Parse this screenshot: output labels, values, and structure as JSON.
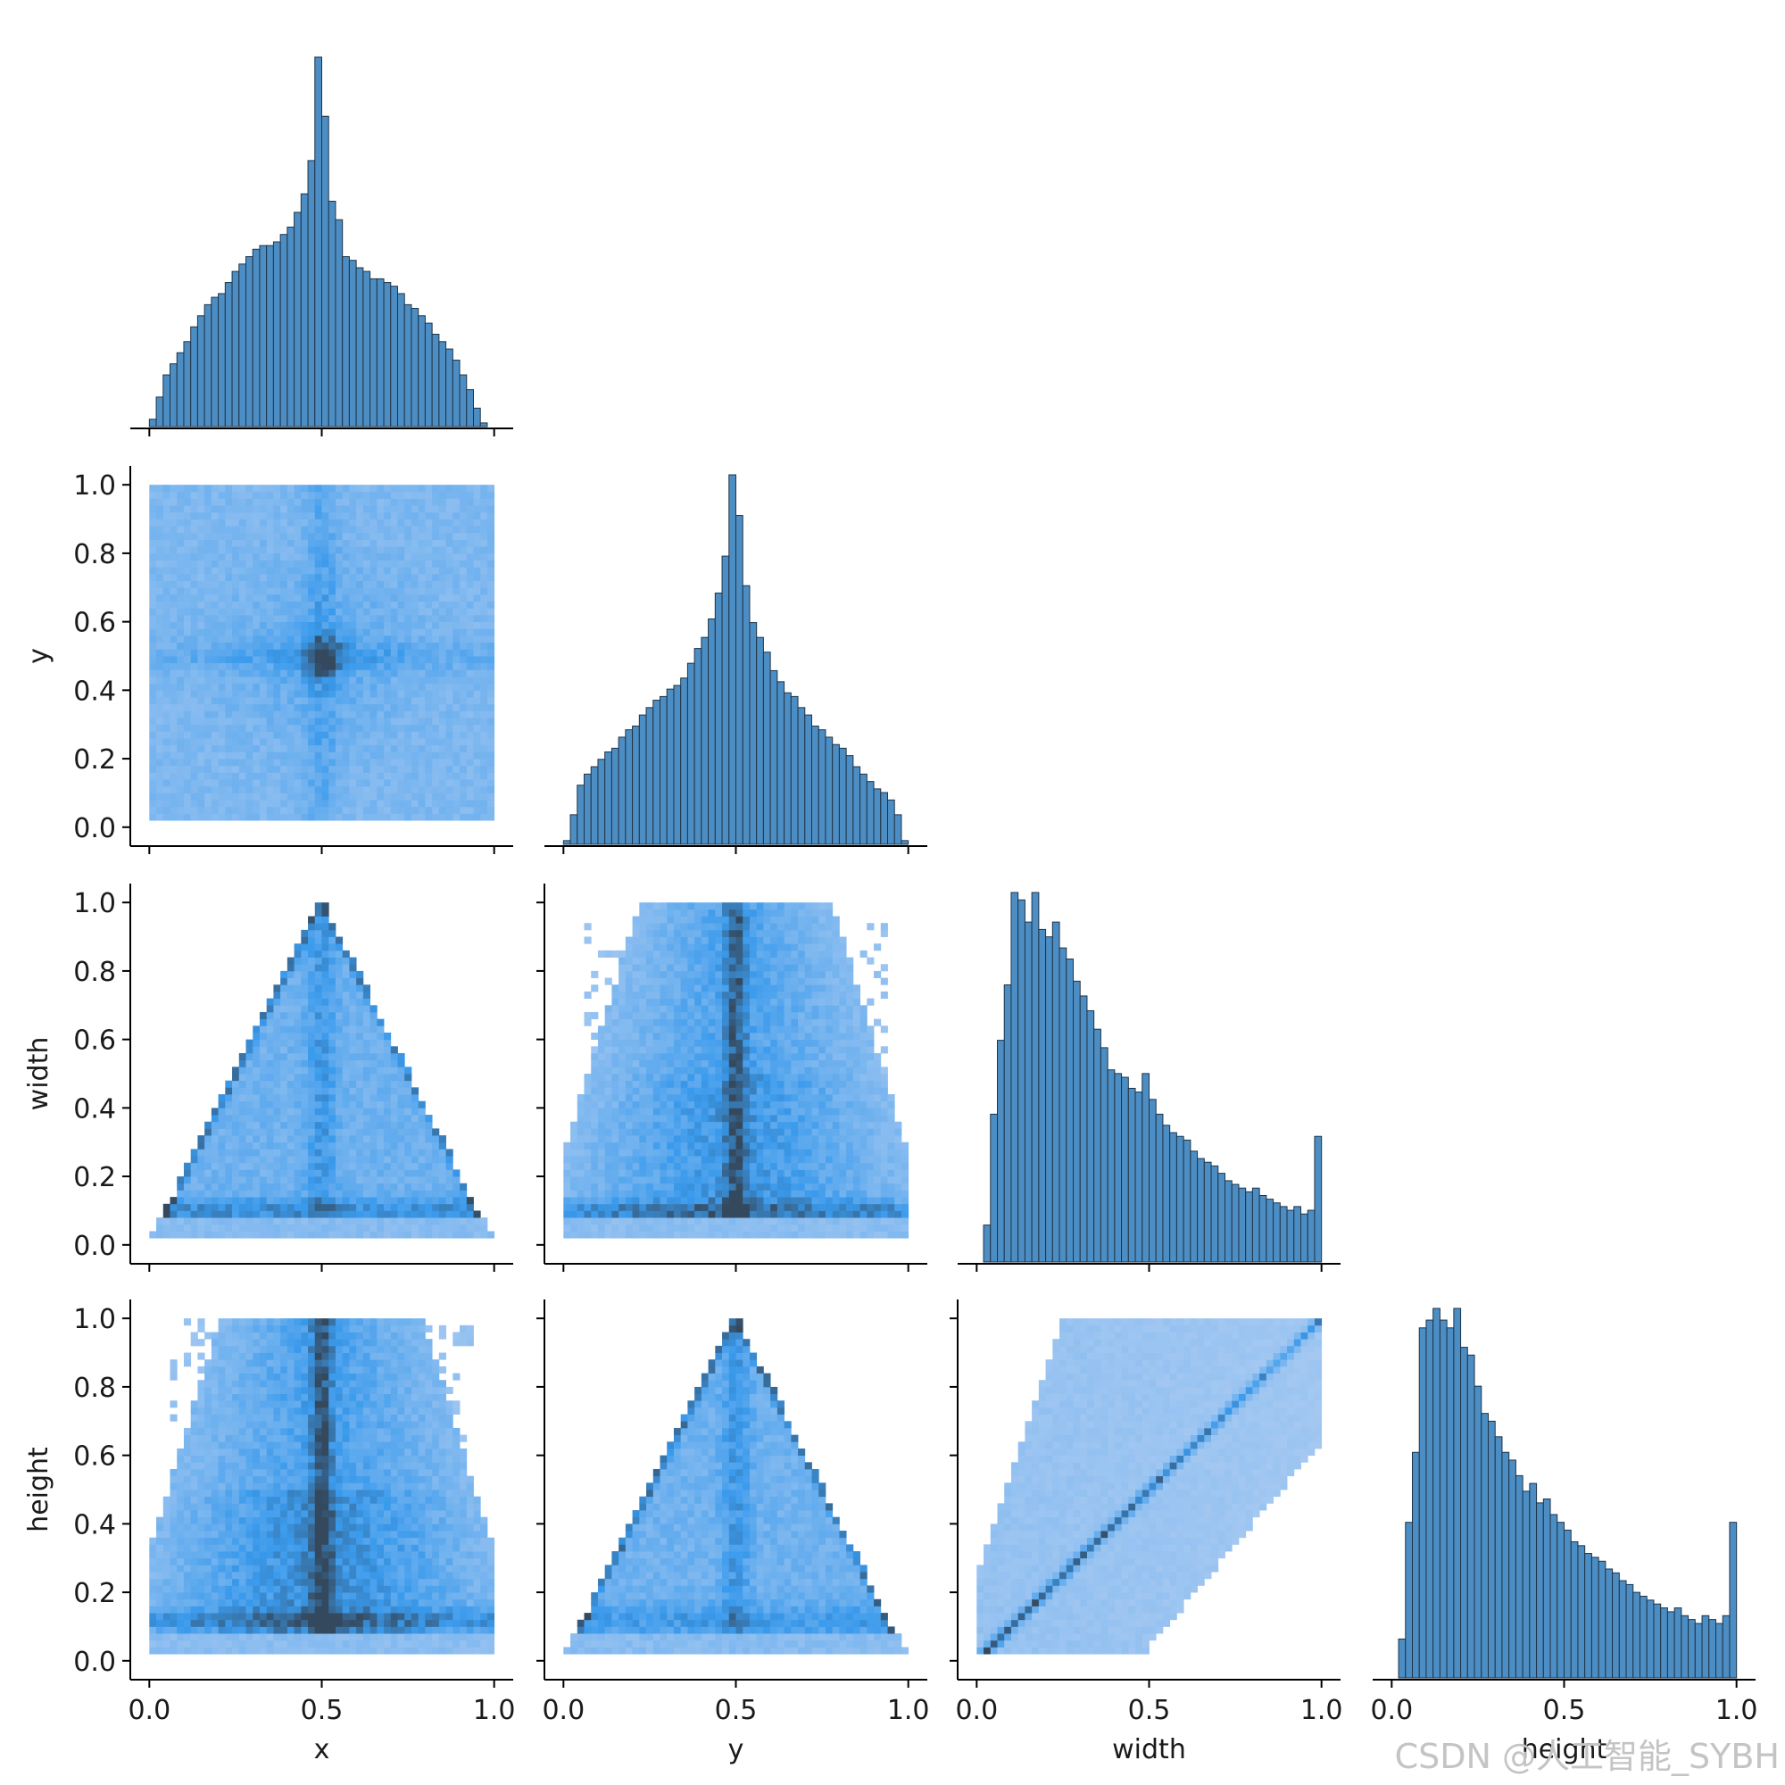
{
  "colors": {
    "hist_fill": "#4c8ec4",
    "hist_edge": "#1f3448",
    "heat_low": "#b4cff2",
    "heat_mid": "#3a9aec",
    "heat_high": "#34495e",
    "axis": "#000000"
  },
  "watermark": "CSDN @人工智能_SYBH",
  "chart_data": {
    "type": "pairplot",
    "variables": [
      "x",
      "y",
      "width",
      "height"
    ],
    "corner": true,
    "diag_kind": "hist",
    "offdiag_kind": "hist2d",
    "x_ticks": [
      "0.0",
      "0.5",
      "1.0"
    ],
    "y_ticks": [
      "0.0",
      "0.2",
      "0.4",
      "0.6",
      "0.8",
      "1.0"
    ],
    "xlim": [
      -0.05,
      1.05
    ],
    "ylim": [
      -0.05,
      1.05
    ],
    "bins": 50,
    "diagonals": {
      "x": {
        "bin_width": 0.02,
        "counts": [
          2,
          8,
          14,
          17,
          20,
          23,
          27,
          30,
          33,
          35,
          36,
          39,
          42,
          44,
          46,
          48,
          49,
          49,
          50,
          52,
          54,
          58,
          63,
          72,
          100,
          84,
          61,
          56,
          46,
          45,
          43,
          42,
          40,
          40,
          39,
          38,
          36,
          33,
          32,
          30,
          28,
          25,
          23,
          21,
          18,
          14,
          10,
          5,
          1,
          0
        ]
      },
      "y": {
        "bin_width": 0.02,
        "counts": [
          1,
          8,
          16,
          19,
          21,
          23,
          25,
          26,
          29,
          31,
          32,
          35,
          37,
          39,
          40,
          42,
          43,
          45,
          49,
          53,
          56,
          61,
          68,
          78,
          100,
          89,
          70,
          60,
          56,
          52,
          47,
          44,
          41,
          40,
          37,
          35,
          32,
          31,
          29,
          27,
          26,
          24,
          21,
          19,
          17,
          15,
          14,
          12,
          8,
          1
        ]
      },
      "width": {
        "bin_width": 0.02,
        "counts": [
          0,
          10,
          40,
          60,
          75,
          100,
          98,
          92,
          100,
          90,
          88,
          92,
          85,
          82,
          76,
          72,
          68,
          63,
          58,
          52,
          51,
          50,
          47,
          46,
          51,
          44,
          40,
          37,
          35,
          34,
          33,
          30,
          28,
          27,
          26,
          24,
          22,
          21,
          20,
          19,
          20,
          18,
          17,
          16,
          15,
          14,
          15,
          13,
          14,
          34
        ]
      },
      "height": {
        "bin_width": 0.02,
        "counts": [
          0,
          10,
          40,
          58,
          90,
          92,
          95,
          92,
          90,
          95,
          85,
          83,
          75,
          68,
          66,
          62,
          58,
          56,
          52,
          48,
          50,
          45,
          46,
          42,
          40,
          38,
          35,
          34,
          32,
          31,
          30,
          28,
          27,
          25,
          24,
          22,
          21,
          20,
          19,
          18,
          17,
          18,
          16,
          15,
          14,
          16,
          15,
          14,
          16,
          40
        ]
      }
    },
    "heatmaps": [
      {
        "x": "x",
        "y": "y",
        "pattern": "uniform square with dense center at (0.5, 0.5) and cross-shaped spread along x=0.5 and y=0.5"
      },
      {
        "x": "x",
        "y": "width",
        "pattern": "triangle: width ≤ 2·min(x, 1−x), dense edges and dense band near width≈0.1, dense vertical band at x=0.5"
      },
      {
        "x": "y",
        "y": "width",
        "pattern": "dense vertical band at y=0.5, dense band near width≈0.1, sparse above width 0.4 outside center"
      },
      {
        "x": "x",
        "y": "height",
        "pattern": "dense vertical band at x=0.5, dense band near height≈0.1–0.2, sparse above 0.4 outside center"
      },
      {
        "x": "y",
        "y": "height",
        "pattern": "triangle: height ≤ 2·min(y, 1−y), dense edges and dense vertical band at y=0.5"
      },
      {
        "x": "width",
        "y": "height",
        "pattern": "broad light cloud with strong diagonal line height = width, densest at low values"
      }
    ]
  }
}
